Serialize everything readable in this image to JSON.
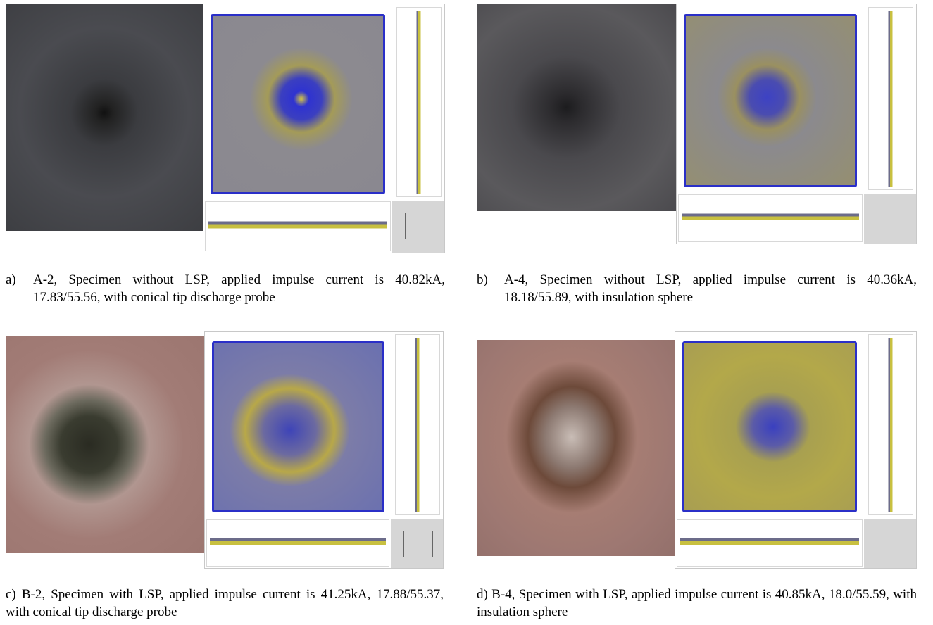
{
  "panels": [
    {
      "label": "a)",
      "caption": "A-2, Specimen without LSP, applied impulse current is 40.82kA, 17.83/55.56, with conical tip discharge probe"
    },
    {
      "label": "b)",
      "caption": "A-4, Specimen without LSP, applied impulse current is 40.36kA, 18.18/55.89, with insulation sphere"
    },
    {
      "label": "c)",
      "caption": "B-2, Specimen with LSP, applied impulse current is 41.25kA, 17.88/55.37, with conical tip discharge probe"
    },
    {
      "label": "d)",
      "caption": "B-4, Specimen with LSP, applied impulse current is 40.85kA, 18.0/55.59, with insulation sphere"
    }
  ]
}
